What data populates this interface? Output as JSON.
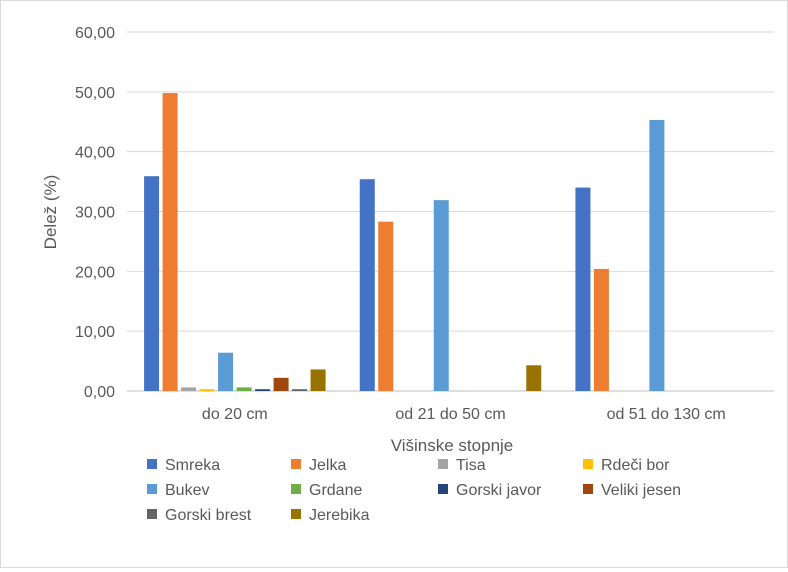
{
  "chart_data": {
    "type": "bar",
    "categories": [
      "do 20 cm",
      "od 21 do 50 cm",
      "od 51 do 130 cm"
    ],
    "series": [
      {
        "name": "Smreka",
        "color": "#4472c4",
        "values": [
          35.9,
          35.4,
          34.0
        ]
      },
      {
        "name": "Jelka",
        "color": "#ed7d31",
        "values": [
          49.8,
          28.3,
          20.4
        ]
      },
      {
        "name": "Tisa",
        "color": "#a5a5a5",
        "values": [
          0.6,
          0,
          0
        ]
      },
      {
        "name": "Rdeči bor",
        "color": "#ffc000",
        "values": [
          0.3,
          0,
          0
        ]
      },
      {
        "name": "Bukev",
        "color": "#5b9bd5",
        "values": [
          6.4,
          31.9,
          45.3
        ]
      },
      {
        "name": "Grdane",
        "color": "#70ad47",
        "values": [
          0.6,
          0,
          0
        ]
      },
      {
        "name": "Gorski javor",
        "color": "#264478",
        "values": [
          0.3,
          0,
          0
        ]
      },
      {
        "name": "Veliki jesen",
        "color": "#9e480e",
        "values": [
          2.2,
          0,
          0
        ]
      },
      {
        "name": "Gorski brest",
        "color": "#636363",
        "values": [
          0.3,
          0,
          0
        ]
      },
      {
        "name": "Jerebika",
        "color": "#997300",
        "values": [
          3.6,
          4.3,
          0
        ]
      }
    ],
    "yticks": [
      "0,00",
      "10,00",
      "20,00",
      "30,00",
      "40,00",
      "50,00",
      "60,00"
    ],
    "ylim": [
      0,
      60
    ],
    "xlabel": "Višinske stopnje",
    "ylabel": "Delež (%)",
    "grid": true,
    "legend_position": "bottom"
  }
}
